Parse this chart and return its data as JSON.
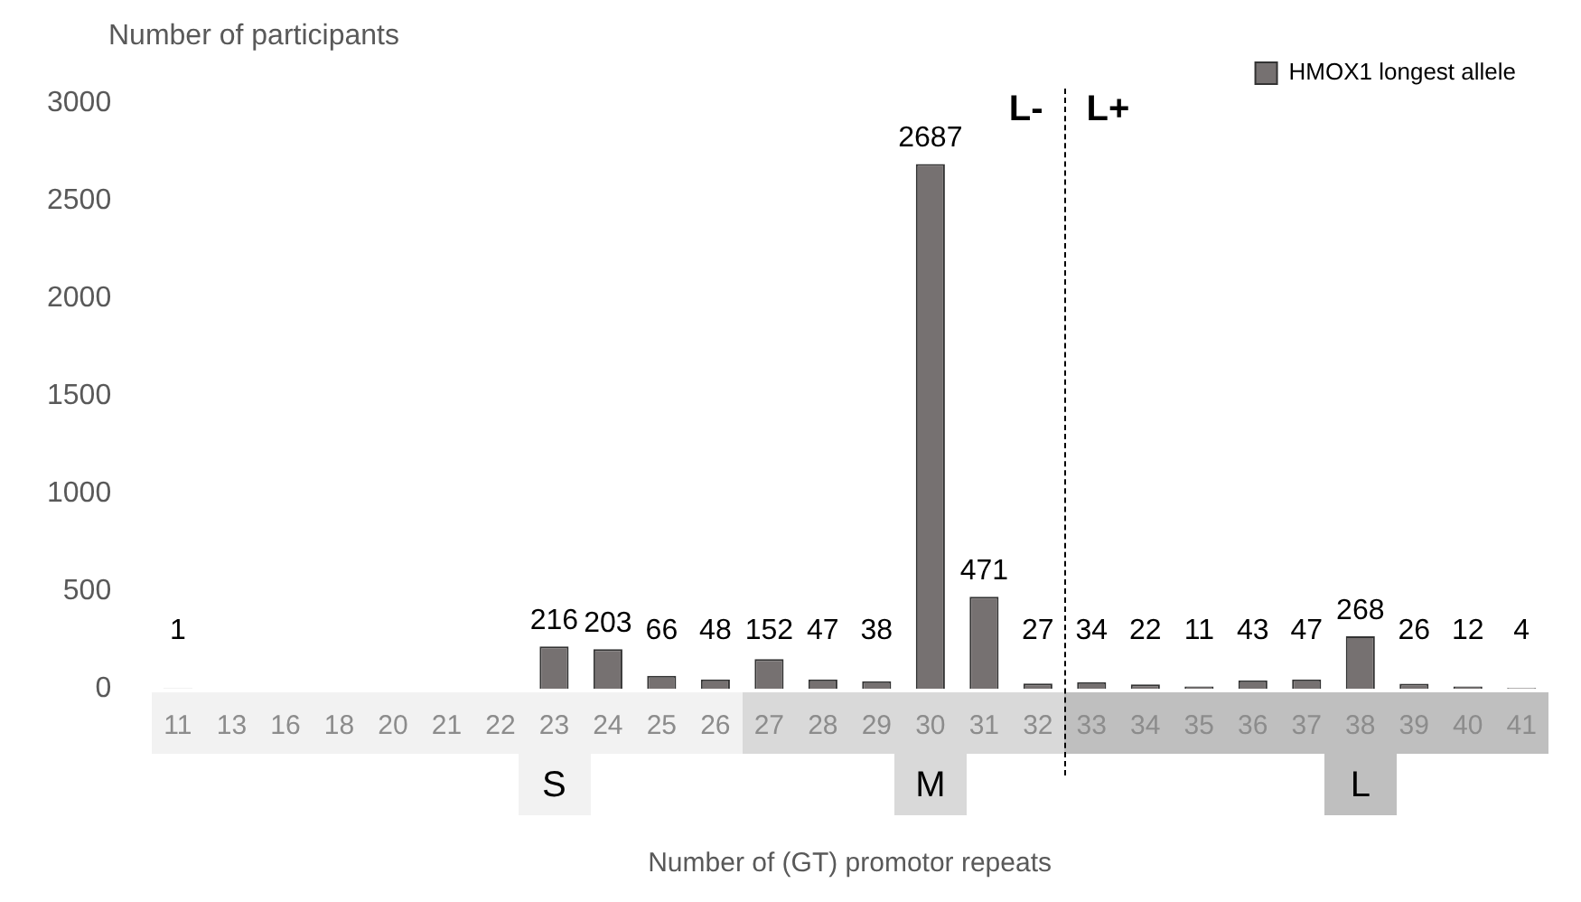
{
  "chart_data": {
    "type": "bar",
    "xlabel": "Number of (GT) promotor repeats",
    "ylabel": "Number of participants",
    "categories": [
      "11",
      "13",
      "16",
      "18",
      "20",
      "21",
      "22",
      "23",
      "24",
      "25",
      "26",
      "27",
      "28",
      "29",
      "30",
      "31",
      "32",
      "33",
      "34",
      "35",
      "36",
      "37",
      "38",
      "39",
      "40",
      "41"
    ],
    "series": [
      {
        "name": "HMOX1 longest allele",
        "color": "#767171",
        "values": [
          1,
          null,
          null,
          null,
          null,
          null,
          null,
          216,
          203,
          66,
          48,
          152,
          47,
          38,
          2687,
          471,
          27,
          34,
          22,
          11,
          43,
          47,
          268,
          26,
          12,
          4
        ]
      }
    ],
    "ylim": [
      0,
      3000
    ],
    "yticks": [
      0,
      500,
      1000,
      1500,
      2000,
      2500,
      3000
    ],
    "grid": false,
    "legend": "top right",
    "data_labels": true,
    "annotations": [
      "L-",
      "L+",
      "S",
      "M",
      "L"
    ]
  }
}
